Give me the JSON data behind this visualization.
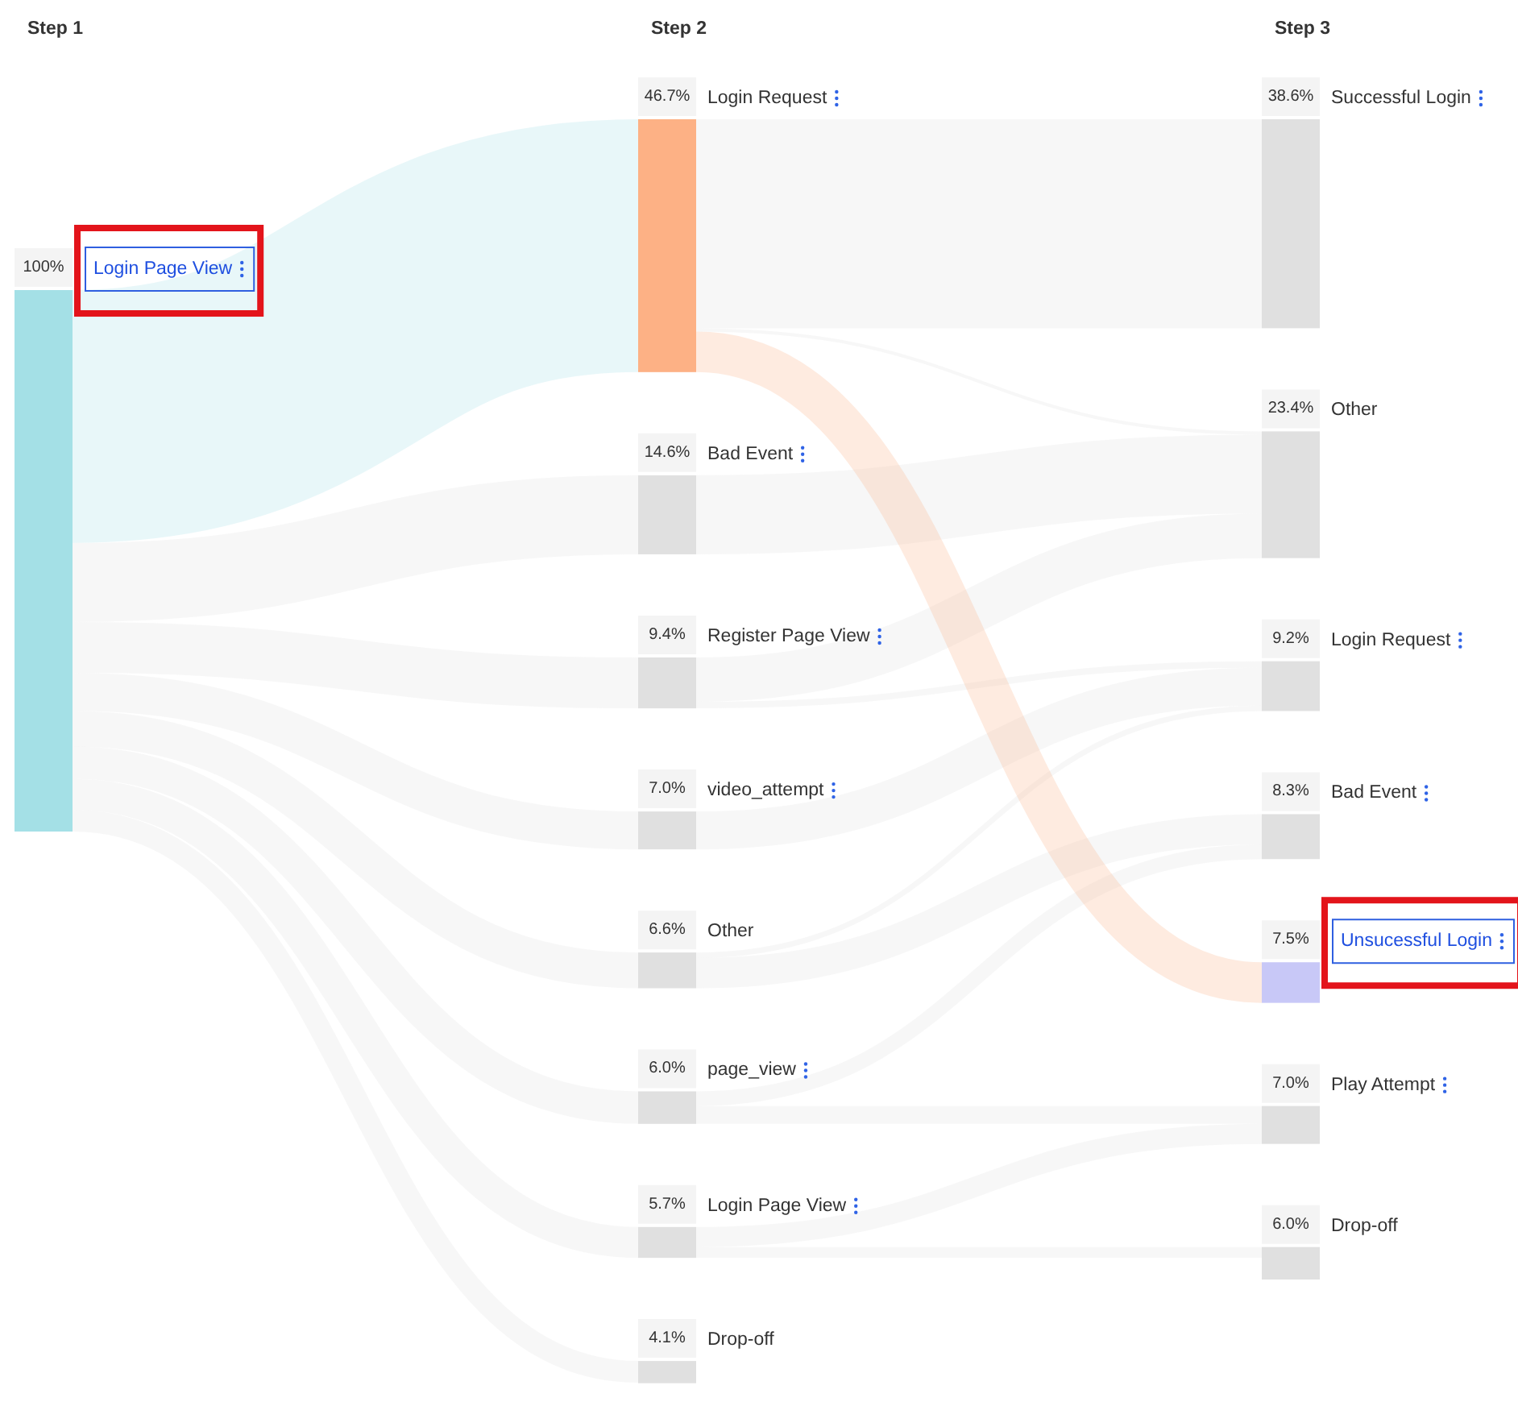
{
  "chart_data": {
    "type": "other",
    "annotations": [
      "Step 1",
      "Step 2",
      "Step 3"
    ],
    "categories": [
      "Login Page View",
      "Login Request",
      "Bad Event",
      "Register Page View",
      "video_attempt",
      "Other",
      "page_view",
      "Login Page View",
      "Drop-off",
      "Successful Login",
      "Other",
      "Login Request",
      "Bad Event",
      "Unsucessful Login",
      "Play Attempt",
      "Drop-off"
    ],
    "series": [
      {
        "values": [
          100,
          null,
          null,
          null,
          null,
          null,
          null,
          null,
          null,
          null,
          null,
          null,
          null,
          null,
          null,
          null
        ],
        "value_labels": [
          "100%",
          null,
          null,
          null,
          null,
          null,
          null,
          null,
          null,
          null,
          null,
          null,
          null,
          null,
          null,
          null
        ]
      },
      {
        "values": [
          null,
          46.7,
          14.6,
          9.4,
          7.0,
          6.6,
          6.0,
          5.7,
          4.1,
          null,
          null,
          null,
          null,
          null,
          null,
          null
        ],
        "value_labels": [
          null,
          "46.7%",
          "14.6%",
          "9.4%",
          "7.0%",
          "6.6%",
          "6.0%",
          "5.7%",
          "4.1%",
          null,
          null,
          null,
          null,
          null,
          null,
          null
        ]
      },
      {
        "values": [
          null,
          null,
          null,
          null,
          null,
          null,
          null,
          null,
          null,
          38.6,
          23.4,
          9.2,
          8.3,
          7.5,
          7.0,
          6.0
        ],
        "value_labels": [
          null,
          null,
          null,
          null,
          null,
          null,
          null,
          null,
          null,
          "38.6%",
          "23.4%",
          "9.2%",
          "8.3%",
          "7.5%",
          "7.0%",
          "6.0%"
        ]
      }
    ],
    "colors": [
      "#a4e0e6",
      "#fdb185",
      "#e0e0e0",
      "#e0e0e0",
      "#e0e0e0",
      "#e0e0e0",
      "#e0e0e0",
      "#e0e0e0",
      "#e0e0e0",
      "#e0e0e0",
      "#e0e0e0",
      "#e0e0e0",
      "#e0e0e0",
      "#c8c8f7",
      "#e0e0e0",
      "#e0e0e0"
    ]
  }
}
